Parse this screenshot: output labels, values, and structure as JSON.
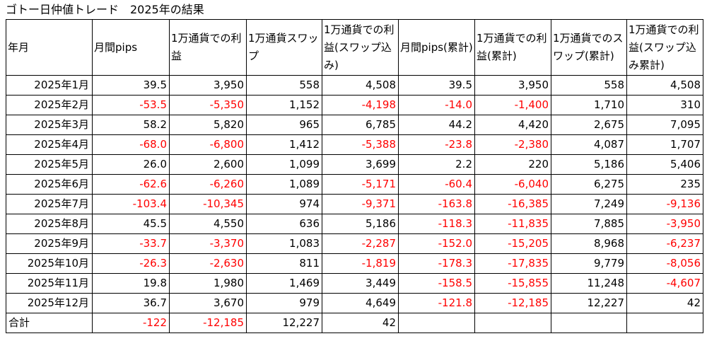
{
  "title": "ゴトー日仲値トレード　2025年の結果",
  "colors": {
    "negative": "#ff0000",
    "positive": "#000000",
    "grid": "#000000"
  },
  "columns": [
    "年月",
    "月間pips",
    "1万通貨での利益",
    "1万通貨スワップ",
    "1万通貨での利益(スワップ込み)",
    "月間pips(累計)",
    "1万通貨での利益(累計)",
    "1万通貨でのスワップ(累計)",
    "1万通貨での利益(スワップ込み累計)"
  ],
  "rows": [
    {
      "label": "2025年1月",
      "cells": [
        "39.5",
        "3,950",
        "558",
        "4,508",
        "39.5",
        "3,950",
        "558",
        "4,508"
      ]
    },
    {
      "label": "2025年2月",
      "cells": [
        "-53.5",
        "-5,350",
        "1,152",
        "-4,198",
        "-14.0",
        "-1,400",
        "1,710",
        "310"
      ]
    },
    {
      "label": "2025年3月",
      "cells": [
        "58.2",
        "5,820",
        "965",
        "6,785",
        "44.2",
        "4,420",
        "2,675",
        "7,095"
      ]
    },
    {
      "label": "2025年4月",
      "cells": [
        "-68.0",
        "-6,800",
        "1,412",
        "-5,388",
        "-23.8",
        "-2,380",
        "4,087",
        "1,707"
      ]
    },
    {
      "label": "2025年5月",
      "cells": [
        "26.0",
        "2,600",
        "1,099",
        "3,699",
        "2.2",
        "220",
        "5,186",
        "5,406"
      ]
    },
    {
      "label": "2025年6月",
      "cells": [
        "-62.6",
        "-6,260",
        "1,089",
        "-5,171",
        "-60.4",
        "-6,040",
        "6,275",
        "235"
      ]
    },
    {
      "label": "2025年7月",
      "cells": [
        "-103.4",
        "-10,345",
        "974",
        "-9,371",
        "-163.8",
        "-16,385",
        "7,249",
        "-9,136"
      ]
    },
    {
      "label": "2025年8月",
      "cells": [
        "45.5",
        "4,550",
        "636",
        "5,186",
        "-118.3",
        "-11,835",
        "7,885",
        "-3,950"
      ]
    },
    {
      "label": "2025年9月",
      "cells": [
        "-33.7",
        "-3,370",
        "1,083",
        "-2,287",
        "-152.0",
        "-15,205",
        "8,968",
        "-6,237"
      ]
    },
    {
      "label": "2025年10月",
      "cells": [
        "-26.3",
        "-2,630",
        "811",
        "-1,819",
        "-178.3",
        "-17,835",
        "9,779",
        "-8,056"
      ]
    },
    {
      "label": "2025年11月",
      "cells": [
        "19.8",
        "1,980",
        "1,469",
        "3,449",
        "-158.5",
        "-15,855",
        "11,248",
        "-4,607"
      ]
    },
    {
      "label": "2025年12月",
      "cells": [
        "36.7",
        "3,670",
        "979",
        "4,649",
        "-121.8",
        "-12,185",
        "12,227",
        "42"
      ]
    }
  ],
  "total": {
    "label": "合計",
    "cells": [
      "-122",
      "-12,185",
      "12,227",
      "42",
      "",
      "",
      "",
      ""
    ]
  }
}
